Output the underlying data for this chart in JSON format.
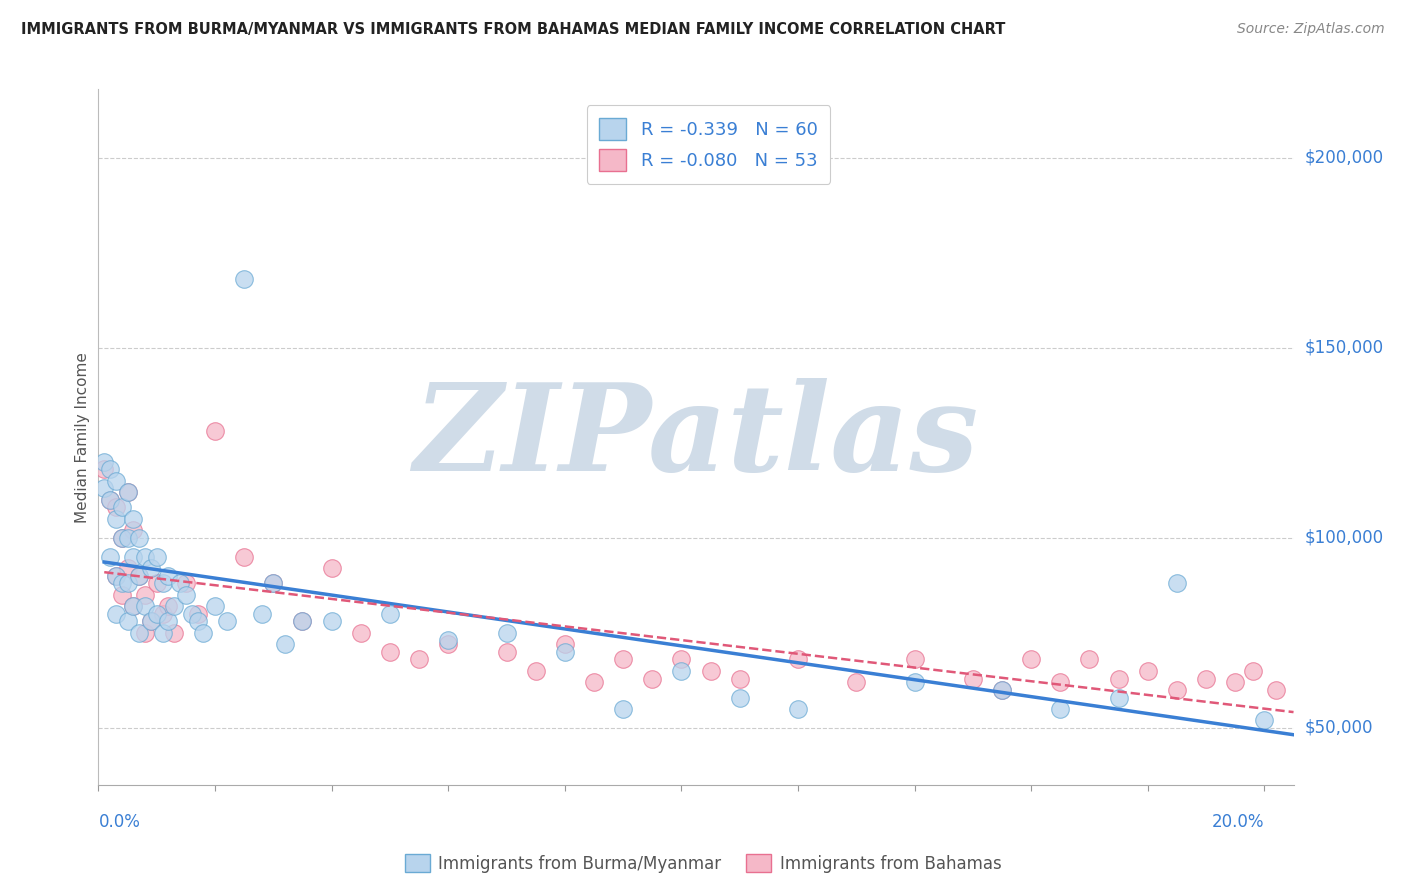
{
  "title": "IMMIGRANTS FROM BURMA/MYANMAR VS IMMIGRANTS FROM BAHAMAS MEDIAN FAMILY INCOME CORRELATION CHART",
  "source": "Source: ZipAtlas.com",
  "ylabel": "Median Family Income",
  "legend_label1": "Immigrants from Burma/Myanmar",
  "legend_label2": "Immigrants from Bahamas",
  "R1": "-0.339",
  "N1": "60",
  "R2": "-0.080",
  "N2": "53",
  "color_blue_fill": "#b8d4ed",
  "color_blue_edge": "#6aaad4",
  "color_pink_fill": "#f5b8c8",
  "color_pink_edge": "#e87090",
  "line_color_blue": "#3a7fd4",
  "line_color_pink": "#e05878",
  "watermark_text": "ZIPatlas",
  "watermark_color": "#d0dce8",
  "yaxis_ticks": [
    50000,
    100000,
    150000,
    200000
  ],
  "yaxis_labels": [
    "$50,000",
    "$100,000",
    "$150,000",
    "$200,000"
  ],
  "xlim": [
    0.0,
    0.205
  ],
  "ylim": [
    35000,
    218000
  ],
  "blue_x": [
    0.001,
    0.001,
    0.002,
    0.002,
    0.002,
    0.003,
    0.003,
    0.003,
    0.003,
    0.004,
    0.004,
    0.004,
    0.005,
    0.005,
    0.005,
    0.005,
    0.006,
    0.006,
    0.006,
    0.007,
    0.007,
    0.007,
    0.008,
    0.008,
    0.009,
    0.009,
    0.01,
    0.01,
    0.011,
    0.011,
    0.012,
    0.012,
    0.013,
    0.014,
    0.015,
    0.016,
    0.017,
    0.018,
    0.02,
    0.022,
    0.025,
    0.028,
    0.03,
    0.032,
    0.035,
    0.04,
    0.05,
    0.06,
    0.07,
    0.08,
    0.09,
    0.1,
    0.11,
    0.12,
    0.14,
    0.155,
    0.165,
    0.175,
    0.185,
    0.2
  ],
  "blue_y": [
    120000,
    113000,
    118000,
    110000,
    95000,
    115000,
    105000,
    90000,
    80000,
    108000,
    100000,
    88000,
    112000,
    100000,
    88000,
    78000,
    105000,
    95000,
    82000,
    100000,
    90000,
    75000,
    95000,
    82000,
    92000,
    78000,
    95000,
    80000,
    88000,
    75000,
    90000,
    78000,
    82000,
    88000,
    85000,
    80000,
    78000,
    75000,
    82000,
    78000,
    168000,
    80000,
    88000,
    72000,
    78000,
    78000,
    80000,
    73000,
    75000,
    70000,
    55000,
    65000,
    58000,
    55000,
    62000,
    60000,
    55000,
    58000,
    88000,
    52000
  ],
  "pink_x": [
    0.001,
    0.002,
    0.003,
    0.003,
    0.004,
    0.004,
    0.005,
    0.005,
    0.006,
    0.006,
    0.007,
    0.008,
    0.008,
    0.009,
    0.01,
    0.011,
    0.012,
    0.013,
    0.015,
    0.017,
    0.02,
    0.025,
    0.03,
    0.035,
    0.04,
    0.045,
    0.05,
    0.055,
    0.06,
    0.07,
    0.075,
    0.08,
    0.085,
    0.09,
    0.095,
    0.1,
    0.105,
    0.11,
    0.12,
    0.13,
    0.14,
    0.15,
    0.155,
    0.16,
    0.165,
    0.17,
    0.175,
    0.18,
    0.185,
    0.19,
    0.195,
    0.198,
    0.202
  ],
  "pink_y": [
    118000,
    110000,
    108000,
    90000,
    100000,
    85000,
    112000,
    92000,
    102000,
    82000,
    90000,
    85000,
    75000,
    78000,
    88000,
    80000,
    82000,
    75000,
    88000,
    80000,
    128000,
    95000,
    88000,
    78000,
    92000,
    75000,
    70000,
    68000,
    72000,
    70000,
    65000,
    72000,
    62000,
    68000,
    63000,
    68000,
    65000,
    63000,
    68000,
    62000,
    68000,
    63000,
    60000,
    68000,
    62000,
    68000,
    63000,
    65000,
    60000,
    63000,
    62000,
    65000,
    60000
  ]
}
